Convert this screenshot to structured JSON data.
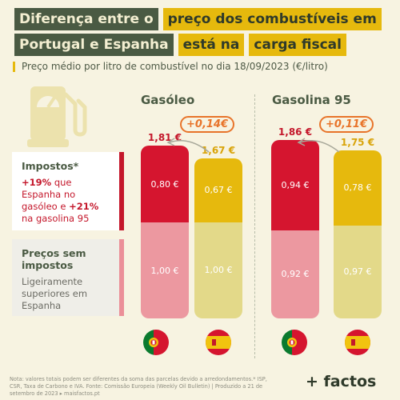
{
  "title": {
    "line1": [
      "Diferença entre o",
      "preço dos combustíveis em"
    ],
    "line2": [
      "Portugal e Espanha",
      "está na",
      "carga fiscal"
    ]
  },
  "subtitle": "Preço médio por litro de combustível no dia 18/09/2023 (€/litro)",
  "legend": {
    "taxes_title": "Impostos*",
    "taxes_text_a": "+19%",
    "taxes_text_b": " que Espanha no gasóleo e ",
    "taxes_text_c": "+21%",
    "taxes_text_d": " na gasolina 95",
    "pretax_title": "Preços sem impostos",
    "pretax_text": "Ligeiramente superiores em Espanha"
  },
  "chart_data": {
    "type": "bar",
    "stacked": true,
    "groups": [
      {
        "name": "Gasóleo",
        "difference_label": "+0,14€",
        "bars": [
          {
            "country": "Portugal",
            "total": 1.81,
            "total_label": "1,81 €",
            "taxes": 0.8,
            "taxes_label": "0,80 €",
            "pretax": 1.0,
            "pretax_label": "1,00 €"
          },
          {
            "country": "Espanha",
            "total": 1.67,
            "total_label": "1,67 €",
            "taxes": 0.67,
            "taxes_label": "0,67 €",
            "pretax": 1.0,
            "pretax_label": "1,00 €"
          }
        ]
      },
      {
        "name": "Gasolina 95",
        "difference_label": "+0,11€",
        "bars": [
          {
            "country": "Portugal",
            "total": 1.86,
            "total_label": "1,86 €",
            "taxes": 0.94,
            "taxes_label": "0,94 €",
            "pretax": 0.92,
            "pretax_label": "0,92 €"
          },
          {
            "country": "Espanha",
            "total": 1.75,
            "total_label": "1,75 €",
            "taxes": 0.78,
            "taxes_label": "0,78 €",
            "pretax": 0.97,
            "pretax_label": "0,97 €"
          }
        ]
      }
    ],
    "colors": {
      "portugal_taxes": "#d5152f",
      "portugal_pretax": "#ec98a0",
      "spain_taxes": "#e6b90d",
      "spain_pretax": "#e3d989",
      "total_portugal": "#c4172b",
      "total_spain": "#d9a40a",
      "difference": "#e8742a"
    }
  },
  "footnote": "Nota: valores totais podem ser diferentes da soma das parcelas devido a arredondamentos.* ISP, CSR, Taxa de Carbono e IVA. Fonte: Comissão Europeia (Weekly Oil Bulletin) | Produzido a 21 de setembro de 2023 ▸ maisfactos.pt",
  "brand": "+ factos",
  "icons": [
    "fuel-pump-icon",
    "portugal-flag-icon",
    "spain-flag-icon",
    "curved-arrow-icon"
  ]
}
